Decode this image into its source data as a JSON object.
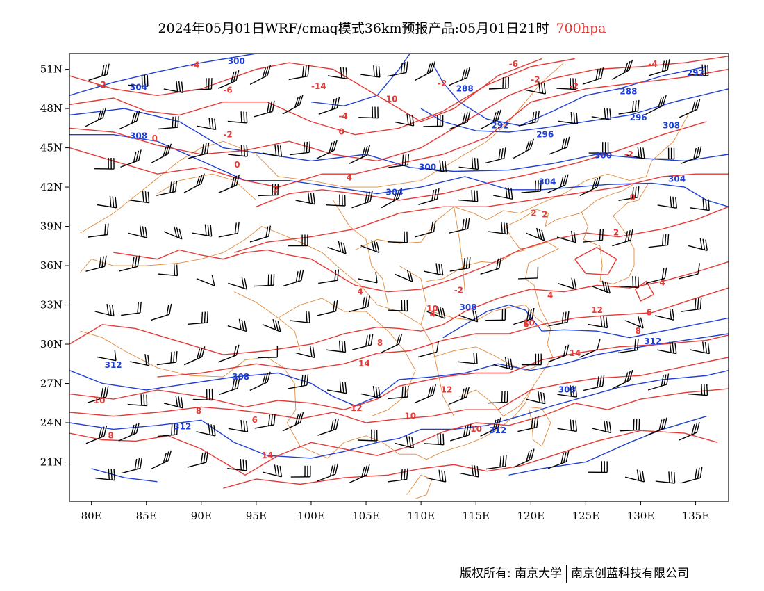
{
  "title": {
    "text": "2024年05月01日WRF/cmaq模式36km预报产品:05月01日21时",
    "level": "700hpa",
    "level_color": "#e53935"
  },
  "map": {
    "lon_range": [
      78,
      138
    ],
    "lat_range": [
      18,
      52.2
    ],
    "x_ticks": [
      "80E",
      "85E",
      "90E",
      "95E",
      "100E",
      "105E",
      "110E",
      "115E",
      "120E",
      "125E",
      "130E",
      "135E"
    ],
    "y_ticks": [
      "51N",
      "48N",
      "45N",
      "42N",
      "39N",
      "36N",
      "33N",
      "30N",
      "27N",
      "24N",
      "21N"
    ],
    "colors": {
      "temperature": "#e53935",
      "geopotential_height": "#1e3fd6",
      "boundary": "#e08a3c",
      "wind": "#000000"
    },
    "temperature_labels": [
      "-4",
      "-2",
      "-6",
      "-14",
      "-2",
      "-6",
      "-2",
      "-2",
      "-4",
      "-10",
      "-4",
      "0",
      "0",
      "-2",
      "0",
      "-2",
      "2",
      "2",
      "4",
      "2",
      "0",
      "-2",
      "2",
      "4",
      "4",
      "4",
      "4",
      "6",
      "6",
      "8",
      "8",
      "10",
      "10",
      "12",
      "14",
      "12",
      "14",
      "10",
      "8",
      "8",
      "6",
      "12",
      "14",
      "10",
      "10"
    ],
    "height_labels": [
      "300",
      "304",
      "308",
      "288",
      "292",
      "296",
      "300",
      "304",
      "288",
      "292",
      "296",
      "300",
      "304",
      "304",
      "308",
      "308",
      "308",
      "312",
      "312",
      "312",
      "308",
      "312"
    ]
  },
  "copyright": {
    "owner1": "版权所有: 南京大学",
    "owner2": "南京创蓝科技有限公司"
  }
}
